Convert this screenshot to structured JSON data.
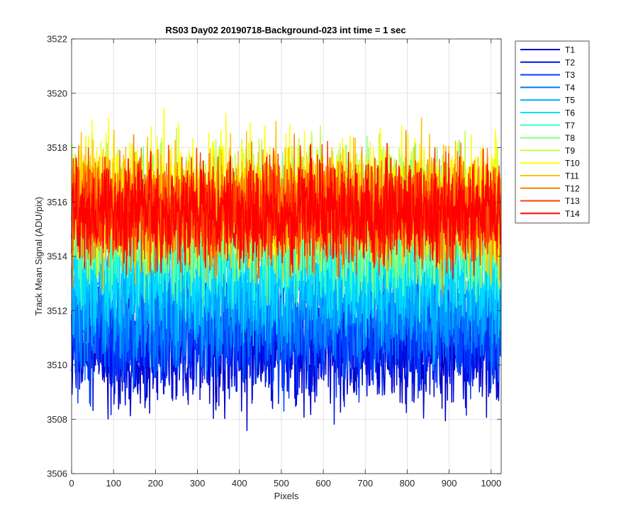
{
  "chart_data": {
    "type": "line",
    "title": "RS03 Day02 20190718-Background-023 int time = 1 sec",
    "xlabel": "Pixels",
    "ylabel": "Track Mean Signal (ADU/pix)",
    "xlim": [
      0,
      1024
    ],
    "ylim": [
      3506,
      3522
    ],
    "xticks": [
      0,
      100,
      200,
      300,
      400,
      500,
      600,
      700,
      800,
      900,
      1000
    ],
    "yticks": [
      3506,
      3508,
      3510,
      3512,
      3514,
      3516,
      3518,
      3520,
      3522
    ],
    "grid": true,
    "legend_position": "outside-top-right",
    "n_points": 1024,
    "series": [
      {
        "name": "T1",
        "color": "#0000C8",
        "mean": 3510.6,
        "spread": 2.4,
        "min": 3507.1,
        "max": 3513.0
      },
      {
        "name": "T2",
        "color": "#0010E6",
        "mean": 3510.9,
        "spread": 2.3,
        "min": 3507.8,
        "max": 3513.4
      },
      {
        "name": "T3",
        "color": "#0040FF",
        "mean": 3511.3,
        "spread": 2.2,
        "min": 3508.3,
        "max": 3513.9
      },
      {
        "name": "T4",
        "color": "#0078FF",
        "mean": 3511.9,
        "spread": 2.2,
        "min": 3509.0,
        "max": 3514.5
      },
      {
        "name": "T5",
        "color": "#00AAFF",
        "mean": 3512.6,
        "spread": 2.2,
        "min": 3509.8,
        "max": 3515.2
      },
      {
        "name": "T6",
        "color": "#00DCFF",
        "mean": 3513.5,
        "spread": 2.3,
        "min": 3510.6,
        "max": 3516.2
      },
      {
        "name": "T7",
        "color": "#40FFC0",
        "mean": 3514.6,
        "spread": 2.5,
        "min": 3511.6,
        "max": 3520.2
      },
      {
        "name": "T8",
        "color": "#80FF80",
        "mean": 3515.4,
        "spread": 2.5,
        "min": 3512.3,
        "max": 3520.3
      },
      {
        "name": "T9",
        "color": "#C0FF40",
        "mean": 3515.9,
        "spread": 2.4,
        "min": 3512.8,
        "max": 3519.6
      },
      {
        "name": "T10",
        "color": "#FFFF00",
        "mean": 3516.1,
        "spread": 2.4,
        "min": 3513.0,
        "max": 3519.6
      },
      {
        "name": "T11",
        "color": "#FFC000",
        "mean": 3515.9,
        "spread": 2.3,
        "min": 3512.8,
        "max": 3519.2
      },
      {
        "name": "T12",
        "color": "#FF7F00",
        "mean": 3515.7,
        "spread": 2.2,
        "min": 3512.6,
        "max": 3519.0
      },
      {
        "name": "T13",
        "color": "#FF3F00",
        "mean": 3515.6,
        "spread": 2.1,
        "min": 3512.7,
        "max": 3519.0
      },
      {
        "name": "T14",
        "color": "#FF0000",
        "mean": 3515.6,
        "spread": 2.0,
        "min": 3511.8,
        "max": 3519.5
      }
    ]
  }
}
